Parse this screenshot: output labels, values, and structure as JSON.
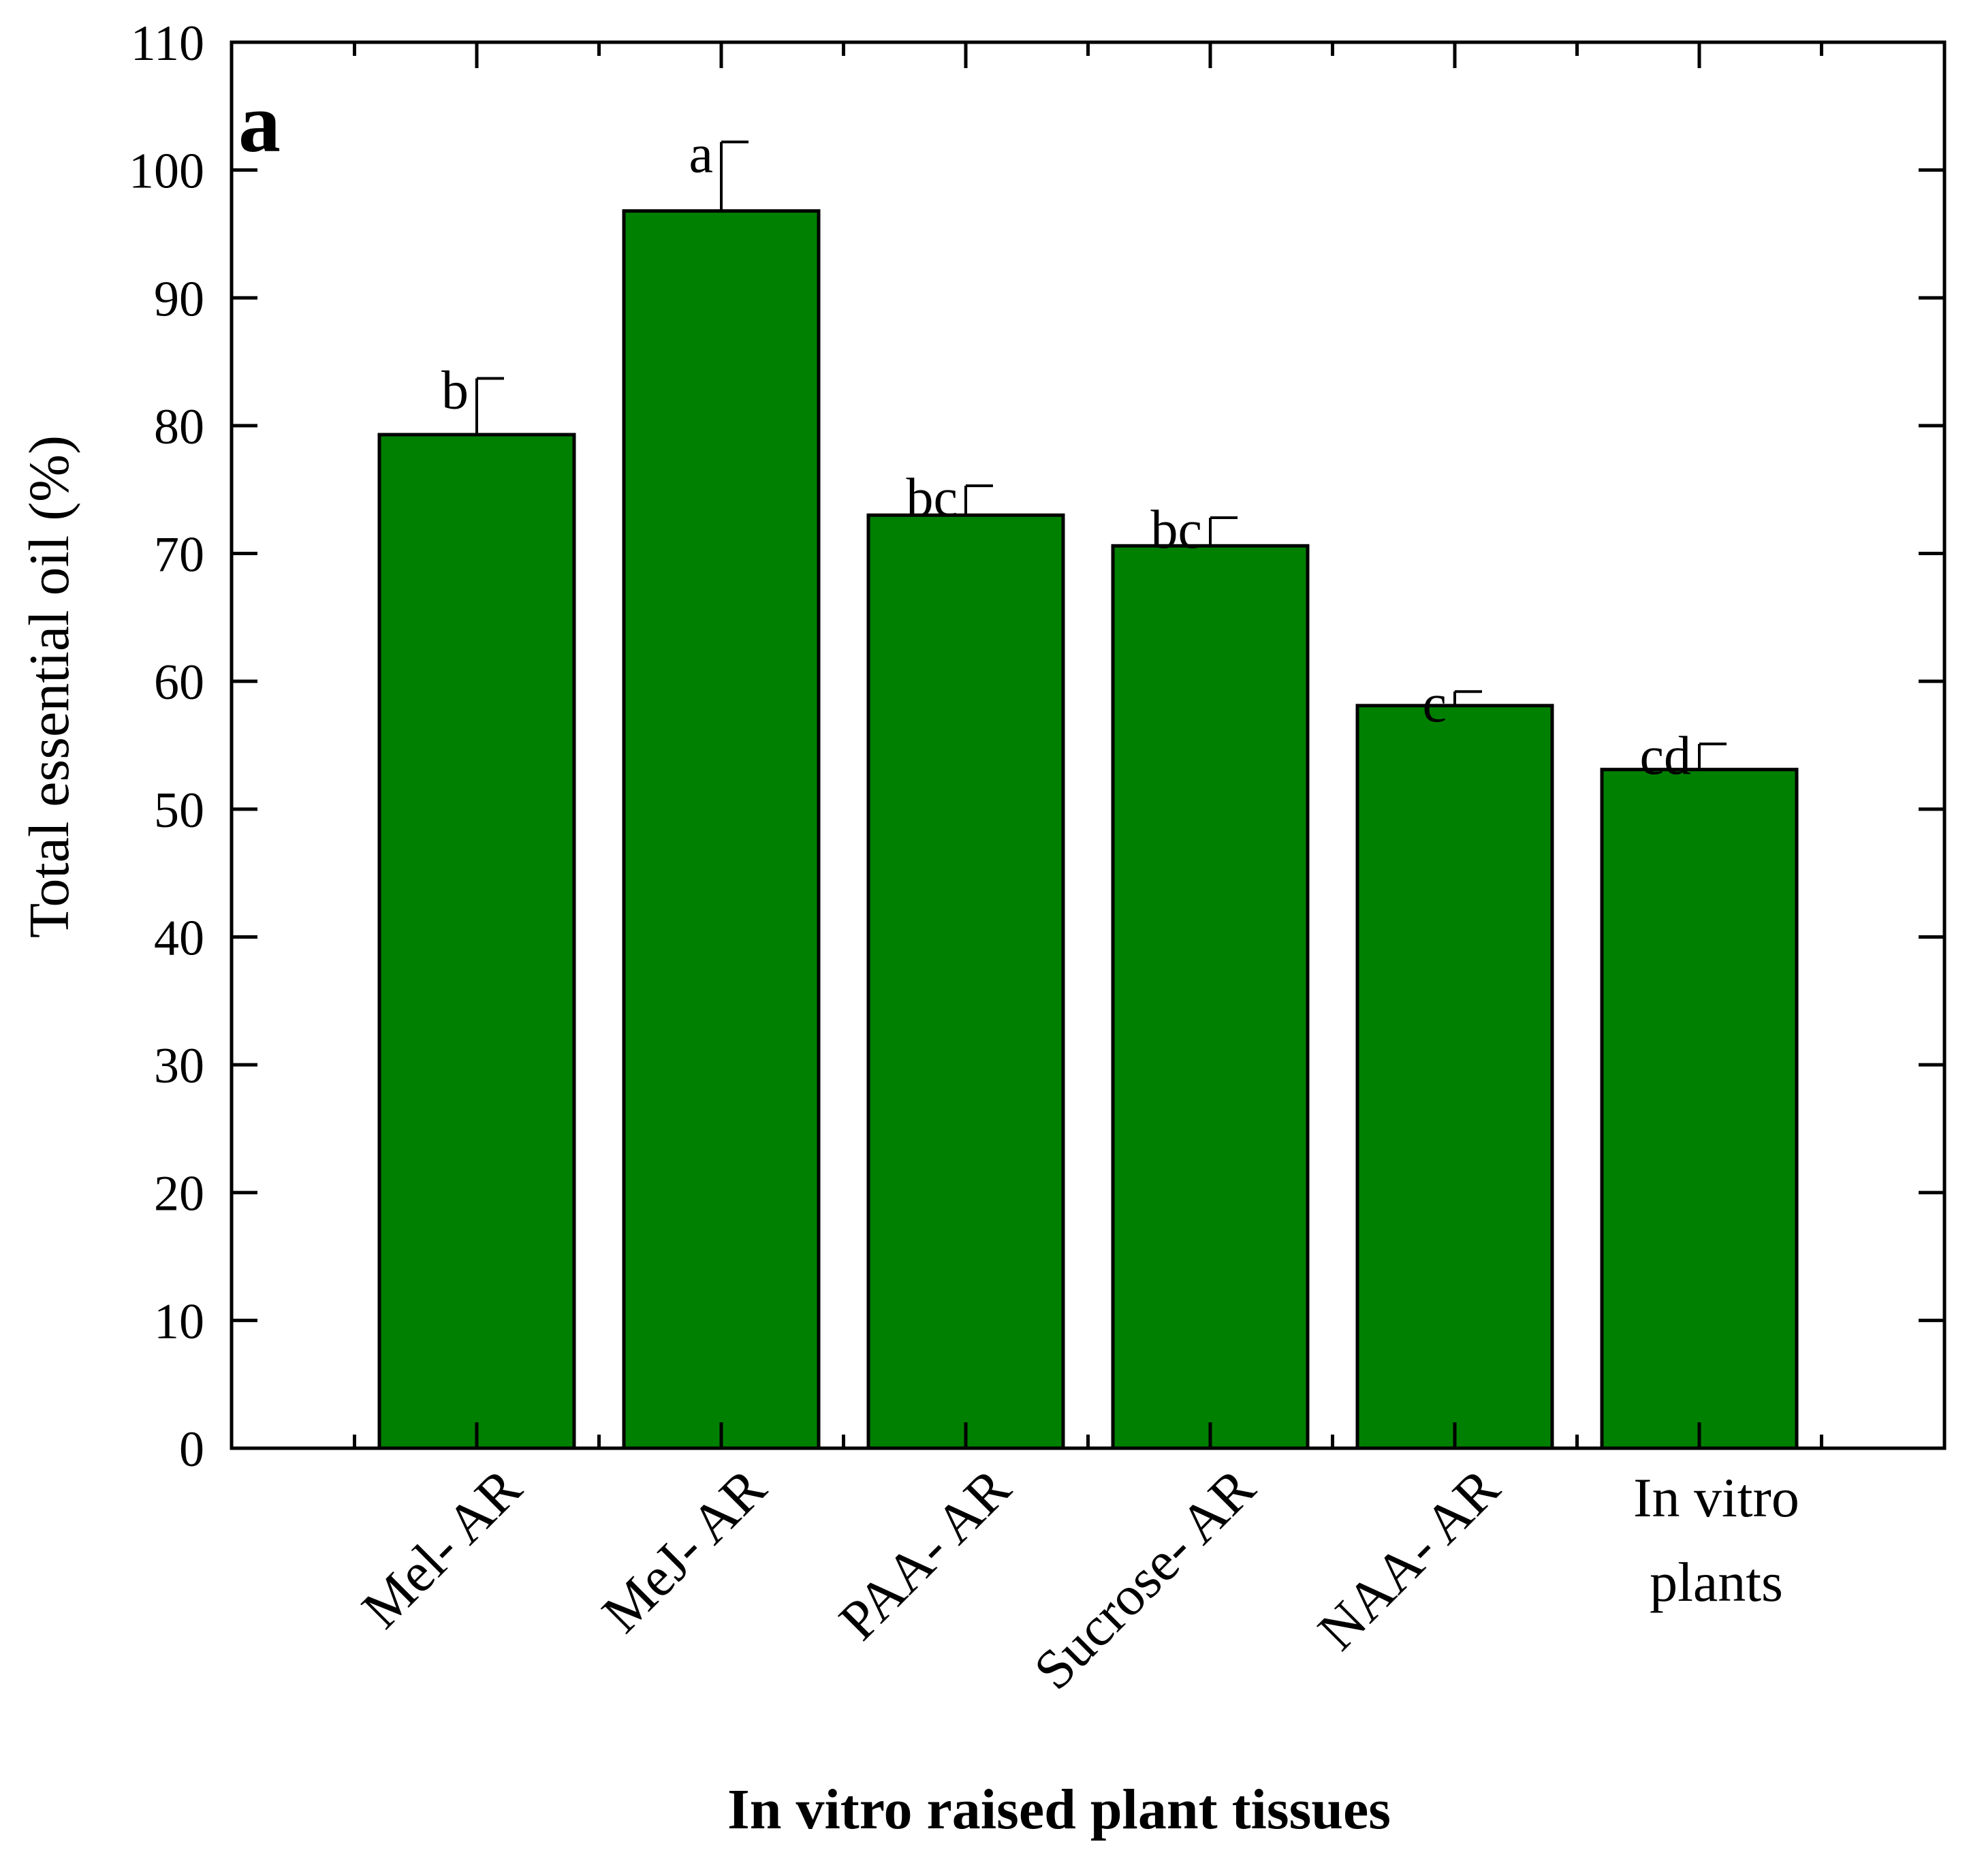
{
  "chart_data": {
    "type": "bar",
    "panel_label": "a",
    "xlabel": "In vitro raised plant tissues",
    "ylabel": "Total essential oil  (%)",
    "ylim": [
      0,
      110
    ],
    "yticks": [
      0,
      10,
      20,
      30,
      40,
      50,
      60,
      70,
      80,
      90,
      100,
      110
    ],
    "categories": [
      [
        "Mel- AR"
      ],
      [
        "MeJ- AR"
      ],
      [
        "PAA- AR"
      ],
      [
        "Sucrose- AR"
      ],
      [
        "NAA- AR"
      ],
      [
        "In vitro",
        "plants"
      ]
    ],
    "values": [
      79.3,
      96.8,
      73.0,
      70.6,
      58.1,
      53.1
    ],
    "errors": [
      4.4,
      5.4,
      2.3,
      2.2,
      1.1,
      2.0
    ],
    "significance": [
      "b",
      "a",
      "bc",
      "bc",
      "c",
      "cd"
    ],
    "bar_color": "#008000",
    "grid": false,
    "legend": "none"
  }
}
